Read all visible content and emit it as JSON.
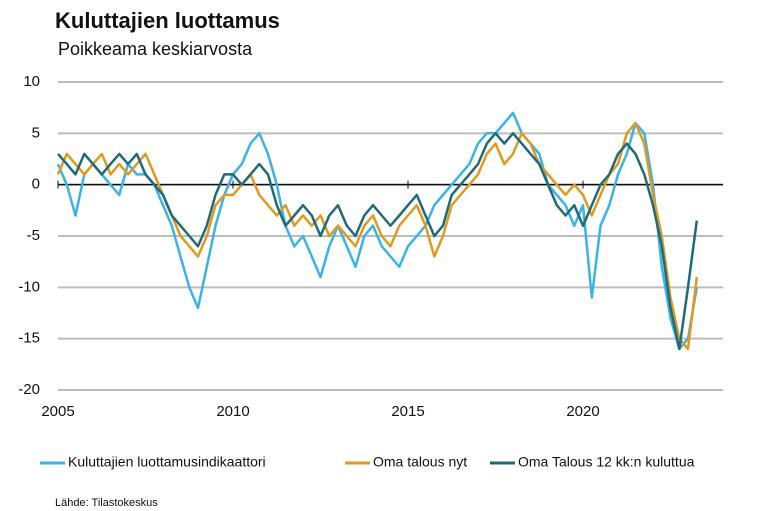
{
  "chart_data": {
    "type": "line",
    "title": "Kuluttajien luottamus",
    "subtitle": "Poikkeama keskiarvosta",
    "source": "Lähde: Tilastokeskus",
    "x": [
      2005,
      2005.25,
      2005.5,
      2005.75,
      2006,
      2006.25,
      2006.5,
      2006.75,
      2007,
      2007.25,
      2007.5,
      2007.75,
      2008,
      2008.25,
      2008.5,
      2008.75,
      2009,
      2009.25,
      2009.5,
      2009.75,
      2010,
      2010.25,
      2010.5,
      2010.75,
      2011,
      2011.25,
      2011.5,
      2011.75,
      2012,
      2012.25,
      2012.5,
      2012.75,
      2013,
      2013.25,
      2013.5,
      2013.75,
      2014,
      2014.25,
      2014.5,
      2014.75,
      2015,
      2015.25,
      2015.5,
      2015.75,
      2016,
      2016.25,
      2016.5,
      2016.75,
      2017,
      2017.25,
      2017.5,
      2017.75,
      2018,
      2018.25,
      2018.5,
      2018.75,
      2019,
      2019.25,
      2019.5,
      2019.75,
      2020,
      2020.25,
      2020.5,
      2020.75,
      2021,
      2021.25,
      2021.5,
      2021.75,
      2022,
      2022.25,
      2022.5,
      2022.75,
      2023,
      2023.25
    ],
    "series": [
      {
        "name": "Kuluttajien luottamusindikaattori",
        "color": "#3ab4e8",
        "values": [
          2,
          0,
          -3,
          1,
          2,
          1,
          0,
          -1,
          2,
          1,
          1,
          0,
          -2,
          -4,
          -7,
          -10,
          -12,
          -8,
          -4,
          -1,
          1,
          2,
          4,
          5,
          3,
          0,
          -4,
          -6,
          -5,
          -7,
          -9,
          -6,
          -4,
          -6,
          -8,
          -5,
          -4,
          -6,
          -7,
          -8,
          -6,
          -5,
          -4,
          -2,
          -1,
          0,
          1,
          2,
          4,
          5,
          5,
          6,
          7,
          5,
          4,
          3,
          0,
          -1,
          -2,
          -4,
          -2,
          -11,
          -4,
          -2,
          1,
          3,
          6,
          5,
          0,
          -8,
          -13,
          -16,
          -15,
          -10
        ]
      },
      {
        "name": "Oma talous nyt",
        "color": "#e09a1e",
        "values": [
          1,
          3,
          2,
          1,
          2,
          3,
          1,
          2,
          1,
          2,
          3,
          1,
          -1,
          -3,
          -5,
          -6,
          -7,
          -5,
          -2,
          -1,
          -1,
          0,
          1,
          -1,
          -2,
          -3,
          -2,
          -4,
          -3,
          -4,
          -3,
          -5,
          -4,
          -5,
          -6,
          -4,
          -3,
          -5,
          -6,
          -4,
          -3,
          -2,
          -4,
          -7,
          -5,
          -2,
          -1,
          0,
          1,
          3,
          4,
          2,
          3,
          5,
          4,
          2,
          1,
          0,
          -1,
          0,
          -1,
          -3,
          -1,
          1,
          2,
          5,
          6,
          4,
          -1,
          -5,
          -11,
          -15,
          -16,
          -9
        ]
      },
      {
        "name": "Oma Talous 12 kk:n kuluttua",
        "color": "#1f6b7a",
        "values": [
          3,
          2,
          1,
          3,
          2,
          1,
          2,
          3,
          2,
          3,
          1,
          0,
          -1,
          -3,
          -4,
          -5,
          -6,
          -4,
          -1,
          1,
          1,
          0,
          1,
          2,
          1,
          -2,
          -4,
          -3,
          -2,
          -3,
          -5,
          -3,
          -2,
          -4,
          -5,
          -3,
          -2,
          -3,
          -4,
          -3,
          -2,
          -1,
          -3,
          -5,
          -4,
          -1,
          0,
          1,
          2,
          4,
          5,
          4,
          5,
          4,
          3,
          2,
          0,
          -2,
          -3,
          -2,
          -4,
          -2,
          0,
          1,
          3,
          4,
          3,
          1,
          -2,
          -6,
          -12,
          -16,
          -10,
          -3.5
        ]
      }
    ],
    "xlim": [
      2005,
      2024
    ],
    "xticks": [
      2005,
      2010,
      2015,
      2020
    ],
    "ylim": [
      -20,
      10
    ],
    "yticks": [
      10,
      5,
      0,
      -5,
      -10,
      -15,
      -20
    ],
    "grid": true
  }
}
